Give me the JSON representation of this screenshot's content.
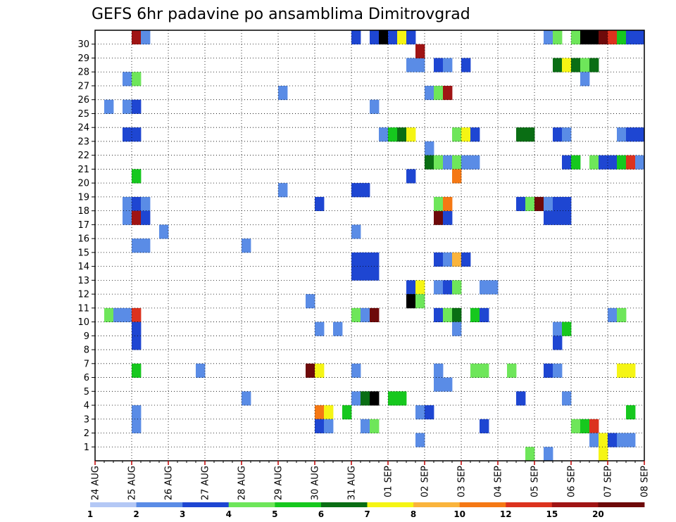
{
  "chart_data": {
    "type": "heatmap",
    "title": "GEFS 6hr padavine po ansamblima Dimitrovgrad",
    "x_tick_labels": [
      "24 AUG",
      "25 AUG",
      "26 AUG",
      "27 AUG",
      "28 AUG",
      "29 AUG",
      "30 AUG",
      "31 AUG",
      "01 SEP",
      "02 SEP",
      "03 SEP",
      "04 SEP",
      "05 SEP",
      "06 SEP",
      "07 SEP",
      "08 SEP"
    ],
    "y_tick_labels": [
      "1",
      "2",
      "3",
      "4",
      "5",
      "6",
      "7",
      "8",
      "9",
      "10",
      "11",
      "12",
      "13",
      "14",
      "15",
      "16",
      "17",
      "18",
      "19",
      "20",
      "21",
      "22",
      "23",
      "24",
      "25",
      "26",
      "27",
      "28",
      "29",
      "30"
    ],
    "x_range": [
      "24 AUG 00Z",
      "08 SEP 00Z"
    ],
    "time_step_hours": 6,
    "y_range": [
      1,
      30
    ],
    "grid": "dotted",
    "legend": {
      "placement": "bottom",
      "labels": [
        "1",
        "2",
        "3",
        "4",
        "5",
        "6",
        "7",
        "8",
        "10",
        "12",
        "15",
        "20"
      ],
      "colors": [
        "#b4c8f5",
        "#5a8ce6",
        "#1e46d2",
        "#6ee65a",
        "#16c81e",
        "#0a6e14",
        "#f5f514",
        "#fab43c",
        "#f57814",
        "#dc321e",
        "#a01414",
        "#6e0a0a"
      ]
    },
    "cells": [
      [
        1,
        10,
        3
      ],
      [
        2,
        10,
        1
      ],
      [
        3,
        10,
        1
      ],
      [
        4,
        10,
        9
      ],
      [
        1,
        25,
        1
      ],
      [
        3,
        25,
        1
      ],
      [
        4,
        25,
        2
      ],
      [
        3,
        27,
        1
      ],
      [
        4,
        27,
        3
      ],
      [
        3,
        23,
        2
      ],
      [
        4,
        23,
        2
      ],
      [
        3,
        18,
        1
      ],
      [
        4,
        18,
        2
      ],
      [
        5,
        18,
        1
      ],
      [
        3,
        17,
        1
      ],
      [
        4,
        17,
        10
      ],
      [
        5,
        17,
        2
      ],
      [
        4,
        30,
        10
      ],
      [
        5,
        30,
        1
      ],
      [
        4,
        20,
        4
      ],
      [
        4,
        15,
        1
      ],
      [
        5,
        15,
        1
      ],
      [
        4,
        9,
        2
      ],
      [
        4,
        8,
        2
      ],
      [
        4,
        6,
        4
      ],
      [
        4,
        3,
        1
      ],
      [
        4,
        2,
        1
      ],
      [
        7,
        16,
        1
      ],
      [
        11,
        6,
        1
      ],
      [
        16,
        15,
        1
      ],
      [
        16,
        4,
        1
      ],
      [
        20,
        26,
        1
      ],
      [
        20,
        19,
        1
      ],
      [
        23,
        11,
        1
      ],
      [
        23,
        6,
        11
      ],
      [
        24,
        6,
        6
      ],
      [
        24,
        18,
        2
      ],
      [
        24,
        9,
        1
      ],
      [
        24,
        3,
        8
      ],
      [
        25,
        3,
        6
      ],
      [
        24,
        2,
        2
      ],
      [
        25,
        2,
        1
      ],
      [
        26,
        9,
        1
      ],
      [
        27,
        3,
        4
      ],
      [
        28,
        30,
        2
      ],
      [
        28,
        19,
        2
      ],
      [
        29,
        19,
        2
      ],
      [
        28,
        14,
        2
      ],
      [
        29,
        14,
        2
      ],
      [
        30,
        14,
        2
      ],
      [
        28,
        13,
        2
      ],
      [
        29,
        13,
        2
      ],
      [
        30,
        13,
        2
      ],
      [
        28,
        16,
        1
      ],
      [
        28,
        10,
        3
      ],
      [
        29,
        10,
        1
      ],
      [
        30,
        10,
        11
      ],
      [
        28,
        6,
        1
      ],
      [
        28,
        4,
        1
      ],
      [
        29,
        4,
        5
      ],
      [
        30,
        4,
        12
      ],
      [
        30,
        30,
        2
      ],
      [
        31,
        30,
        13
      ],
      [
        32,
        30,
        2
      ],
      [
        33,
        30,
        6
      ],
      [
        34,
        30,
        2
      ],
      [
        30,
        25,
        1
      ],
      [
        31,
        23,
        1
      ],
      [
        32,
        23,
        4
      ],
      [
        33,
        23,
        5
      ],
      [
        34,
        23,
        6
      ],
      [
        29,
        2,
        1
      ],
      [
        30,
        2,
        3
      ],
      [
        32,
        4,
        4
      ],
      [
        33,
        4,
        4
      ],
      [
        34,
        28,
        1
      ],
      [
        35,
        28,
        1
      ],
      [
        35,
        29,
        10
      ],
      [
        34,
        20,
        2
      ],
      [
        34,
        12,
        2
      ],
      [
        35,
        12,
        6
      ],
      [
        34,
        11,
        13
      ],
      [
        35,
        11,
        3
      ],
      [
        35,
        3,
        1
      ],
      [
        36,
        3,
        2
      ],
      [
        35,
        1,
        1
      ],
      [
        36,
        26,
        1
      ],
      [
        36,
        22,
        1
      ],
      [
        36,
        21,
        5
      ],
      [
        37,
        21,
        3
      ],
      [
        38,
        21,
        1
      ],
      [
        39,
        21,
        3
      ],
      [
        40,
        21,
        1
      ],
      [
        41,
        21,
        1
      ],
      [
        37,
        28,
        2
      ],
      [
        38,
        28,
        1
      ],
      [
        40,
        28,
        2
      ],
      [
        37,
        26,
        3
      ],
      [
        38,
        26,
        10
      ],
      [
        37,
        17,
        11
      ],
      [
        38,
        17,
        2
      ],
      [
        37,
        18,
        3
      ],
      [
        38,
        18,
        8
      ],
      [
        37,
        14,
        2
      ],
      [
        38,
        14,
        1
      ],
      [
        39,
        14,
        7
      ],
      [
        40,
        14,
        2
      ],
      [
        37,
        12,
        1
      ],
      [
        38,
        12,
        2
      ],
      [
        39,
        12,
        3
      ],
      [
        37,
        10,
        2
      ],
      [
        38,
        10,
        3
      ],
      [
        39,
        10,
        5
      ],
      [
        41,
        10,
        4
      ],
      [
        42,
        10,
        2
      ],
      [
        37,
        6,
        1
      ],
      [
        37,
        5,
        1
      ],
      [
        38,
        5,
        1
      ],
      [
        39,
        23,
        3
      ],
      [
        40,
        23,
        6
      ],
      [
        41,
        23,
        2
      ],
      [
        39,
        20,
        8
      ],
      [
        39,
        9,
        1
      ],
      [
        41,
        6,
        3
      ],
      [
        42,
        6,
        3
      ],
      [
        42,
        2,
        2
      ],
      [
        42,
        12,
        1
      ],
      [
        43,
        12,
        1
      ],
      [
        45,
        6,
        3
      ],
      [
        46,
        23,
        5
      ],
      [
        47,
        23,
        5
      ],
      [
        46,
        18,
        2
      ],
      [
        47,
        18,
        3
      ],
      [
        48,
        18,
        11
      ],
      [
        49,
        18,
        1
      ],
      [
        50,
        18,
        2
      ],
      [
        51,
        18,
        2
      ],
      [
        49,
        17,
        2
      ],
      [
        50,
        17,
        2
      ],
      [
        51,
        17,
        2
      ],
      [
        46,
        4,
        2
      ],
      [
        49,
        6,
        2
      ],
      [
        50,
        6,
        1
      ],
      [
        47,
        0,
        3
      ],
      [
        49,
        0,
        1
      ],
      [
        49,
        30,
        1
      ],
      [
        50,
        30,
        3
      ],
      [
        52,
        30,
        3
      ],
      [
        53,
        30,
        13
      ],
      [
        54,
        30,
        13
      ],
      [
        55,
        30,
        11
      ],
      [
        56,
        30,
        9
      ],
      [
        57,
        30,
        4
      ],
      [
        58,
        30,
        2
      ],
      [
        59,
        30,
        2
      ],
      [
        50,
        28,
        5
      ],
      [
        51,
        28,
        6
      ],
      [
        52,
        28,
        5
      ],
      [
        53,
        28,
        3
      ],
      [
        54,
        28,
        5
      ],
      [
        53,
        27,
        1
      ],
      [
        50,
        23,
        2
      ],
      [
        51,
        23,
        1
      ],
      [
        57,
        23,
        1
      ],
      [
        58,
        23,
        2
      ],
      [
        59,
        23,
        2
      ],
      [
        51,
        21,
        2
      ],
      [
        52,
        21,
        4
      ],
      [
        54,
        21,
        3
      ],
      [
        55,
        21,
        2
      ],
      [
        56,
        21,
        2
      ],
      [
        57,
        21,
        4
      ],
      [
        58,
        21,
        9
      ],
      [
        59,
        21,
        1
      ],
      [
        50,
        9,
        1
      ],
      [
        51,
        9,
        4
      ],
      [
        50,
        8,
        2
      ],
      [
        51,
        4,
        1
      ],
      [
        52,
        2,
        3
      ],
      [
        53,
        2,
        4
      ],
      [
        54,
        2,
        9
      ],
      [
        54,
        1,
        1
      ],
      [
        55,
        1,
        6
      ],
      [
        56,
        1,
        2
      ],
      [
        57,
        1,
        1
      ],
      [
        58,
        1,
        1
      ],
      [
        55,
        0,
        6
      ],
      [
        56,
        10,
        1
      ],
      [
        57,
        10,
        3
      ],
      [
        57,
        6,
        6
      ],
      [
        58,
        6,
        6
      ],
      [
        58,
        3,
        4
      ]
    ]
  }
}
